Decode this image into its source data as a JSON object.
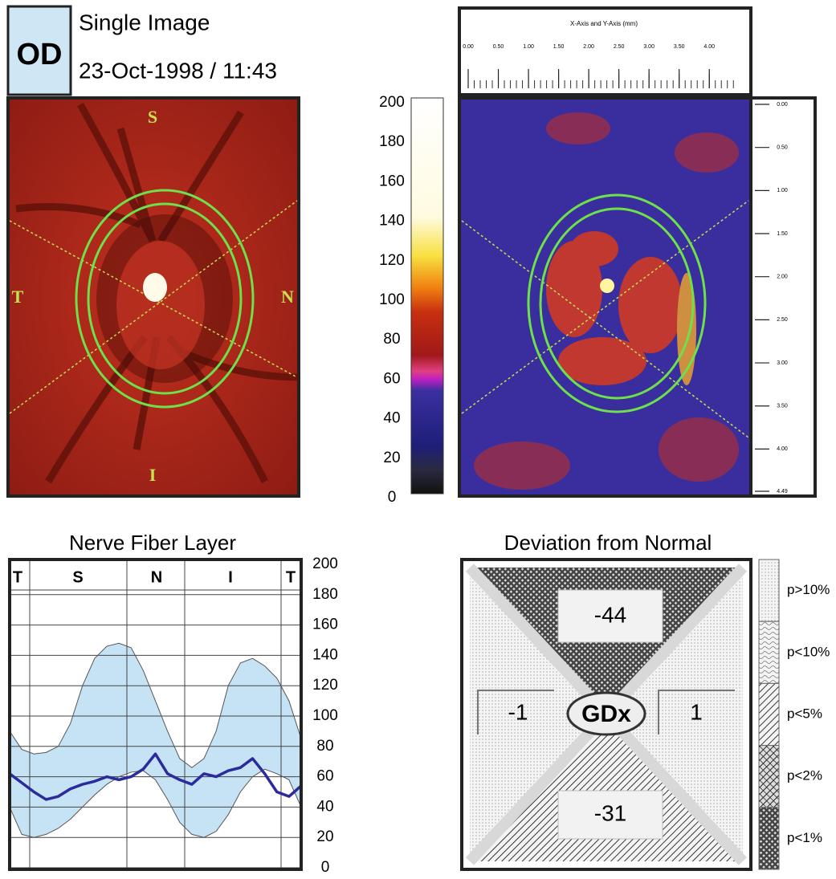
{
  "header": {
    "eye": "OD",
    "title": "Single Image",
    "datetime": "23-Oct-1998 / 11:43"
  },
  "reflectance_image": {
    "labels": {
      "superior": "S",
      "temporal": "T",
      "nasal": "N",
      "inferior": "I"
    }
  },
  "color_scale": {
    "lim": [
      0,
      200
    ],
    "ticks": [
      0,
      20,
      40,
      60,
      80,
      100,
      120,
      140,
      160,
      180,
      200
    ]
  },
  "retardation_image": {
    "axis_title": "X-Axis and Y-Axis (mm)",
    "xlim": [
      0,
      4.49
    ],
    "xticks": [
      {
        "value": 0,
        "label": "0.00"
      },
      {
        "value": 0.5,
        "label": "0.50"
      },
      {
        "value": 1,
        "label": "1.00"
      },
      {
        "value": 1.5,
        "label": "1.50"
      },
      {
        "value": 2,
        "label": "2.00"
      },
      {
        "value": 2.5,
        "label": "2.50"
      },
      {
        "value": 3,
        "label": "3.00"
      },
      {
        "value": 3.5,
        "label": "3.50"
      },
      {
        "value": 4,
        "label": "4.00"
      }
    ],
    "ylim": [
      0,
      4.49
    ],
    "yticks": [
      {
        "value": 0,
        "label": "0.00"
      },
      {
        "value": 0.5,
        "label": "0.50"
      },
      {
        "value": 1,
        "label": "1.00"
      },
      {
        "value": 1.5,
        "label": "1.50"
      },
      {
        "value": 2,
        "label": "2.00"
      },
      {
        "value": 2.5,
        "label": "2.50"
      },
      {
        "value": 3,
        "label": "3.00"
      },
      {
        "value": 3.5,
        "label": "3.50"
      },
      {
        "value": 4,
        "label": "4.00"
      },
      {
        "value": 4.49,
        "label": "4.49"
      }
    ]
  },
  "nfl_chart": {
    "type": "line",
    "title": "Nerve Fiber Layer",
    "sectors": [
      "T",
      "S",
      "N",
      "I",
      "T"
    ],
    "ylim": [
      0,
      200
    ],
    "yticks": [
      0,
      20,
      40,
      60,
      80,
      100,
      120,
      140,
      160,
      180,
      200
    ],
    "grid": true,
    "line_color": "#2b2b9c",
    "band_color": "#c6e3f5",
    "values": [
      62,
      56,
      50,
      45,
      47,
      52,
      55,
      57,
      60,
      58,
      60,
      65,
      75,
      62,
      58,
      55,
      62,
      60,
      64,
      66,
      72,
      62,
      50,
      47,
      54
    ],
    "band_upper": [
      90,
      78,
      75,
      76,
      80,
      95,
      120,
      138,
      146,
      148,
      145,
      130,
      110,
      90,
      72,
      66,
      72,
      90,
      120,
      135,
      138,
      133,
      125,
      110,
      85
    ],
    "band_lower": [
      40,
      22,
      20,
      22,
      26,
      32,
      40,
      48,
      55,
      60,
      63,
      64,
      58,
      45,
      30,
      22,
      20,
      24,
      35,
      50,
      60,
      65,
      62,
      58,
      40
    ]
  },
  "deviation": {
    "title": "Deviation from Normal",
    "center": "GDx",
    "superior": -44,
    "temporal": -1,
    "nasal": 1,
    "inferior": -31,
    "legend": [
      "p>10%",
      "p<10%",
      "p<5%",
      "p<2%",
      "p<1%"
    ]
  }
}
